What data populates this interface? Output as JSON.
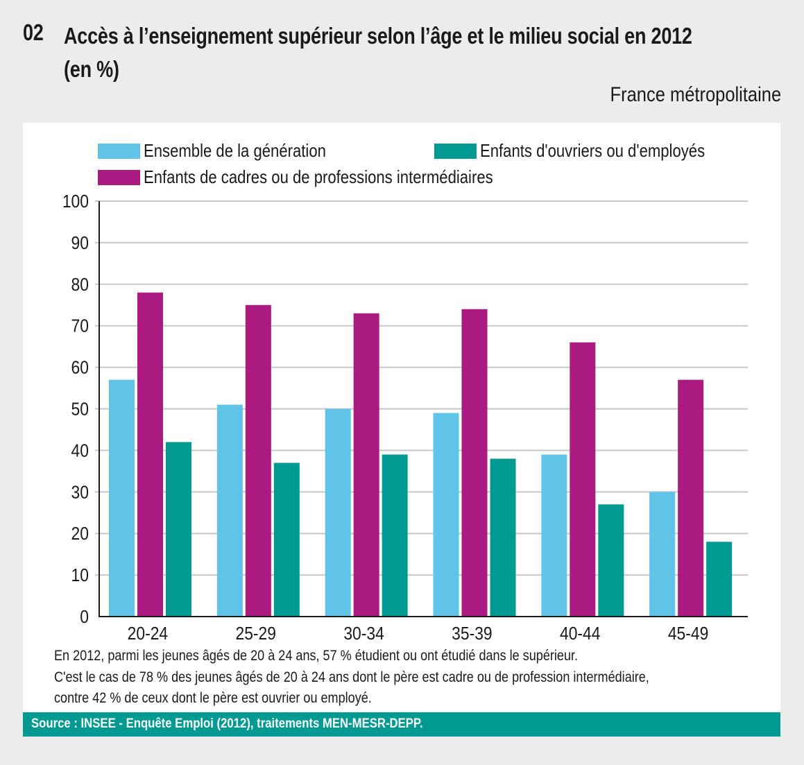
{
  "header": {
    "figure_number": "02",
    "title_line1": "Accès à l’enseignement supérieur selon l’âge et le milieu social en 2012",
    "title_line2": "(en %)",
    "subtitle": "France métropolitaine"
  },
  "notes": [
    "En 2012, parmi les jeunes âgés de 20 à 24 ans, 57 % étudient ou ont étudié dans le supérieur.",
    "C'est le cas de 78 % des jeunes âgés de 20 à 24 ans dont le père est cadre ou de profession intermédiaire,",
    "contre 42 % de ceux dont le père est ouvrier ou employé."
  ],
  "source": "Source : INSEE - Enquête Emploi (2012), traitements MEN-MESR-DEPP.",
  "colors": {
    "ensemble": "#5fc4e8",
    "cadres": "#aa1a80",
    "ouvriers": "#009a93",
    "source_bar": "#009a93",
    "background": "#ececec"
  },
  "chart_data": {
    "type": "bar",
    "title": "Accès à l’enseignement supérieur selon l’âge et le milieu social en 2012 (en %)",
    "xlabel": "",
    "ylabel": "",
    "ylim": [
      0,
      100
    ],
    "yticks": [
      0,
      10,
      20,
      30,
      40,
      50,
      60,
      70,
      80,
      90,
      100
    ],
    "grid": true,
    "legend_position": "top",
    "categories": [
      "20-24",
      "25-29",
      "30-34",
      "35-39",
      "40-44",
      "45-49"
    ],
    "series": [
      {
        "name": "Ensemble de la génération",
        "color": "#5fc4e8",
        "values": [
          57,
          51,
          50,
          49,
          39,
          30
        ]
      },
      {
        "name": "Enfants de cadres ou de professions intermédiaires",
        "color": "#aa1a80",
        "values": [
          78,
          75,
          73,
          74,
          66,
          57
        ]
      },
      {
        "name": "Enfants d'ouvriers ou d'employés",
        "color": "#009a93",
        "values": [
          42,
          37,
          39,
          38,
          27,
          18
        ]
      }
    ]
  }
}
